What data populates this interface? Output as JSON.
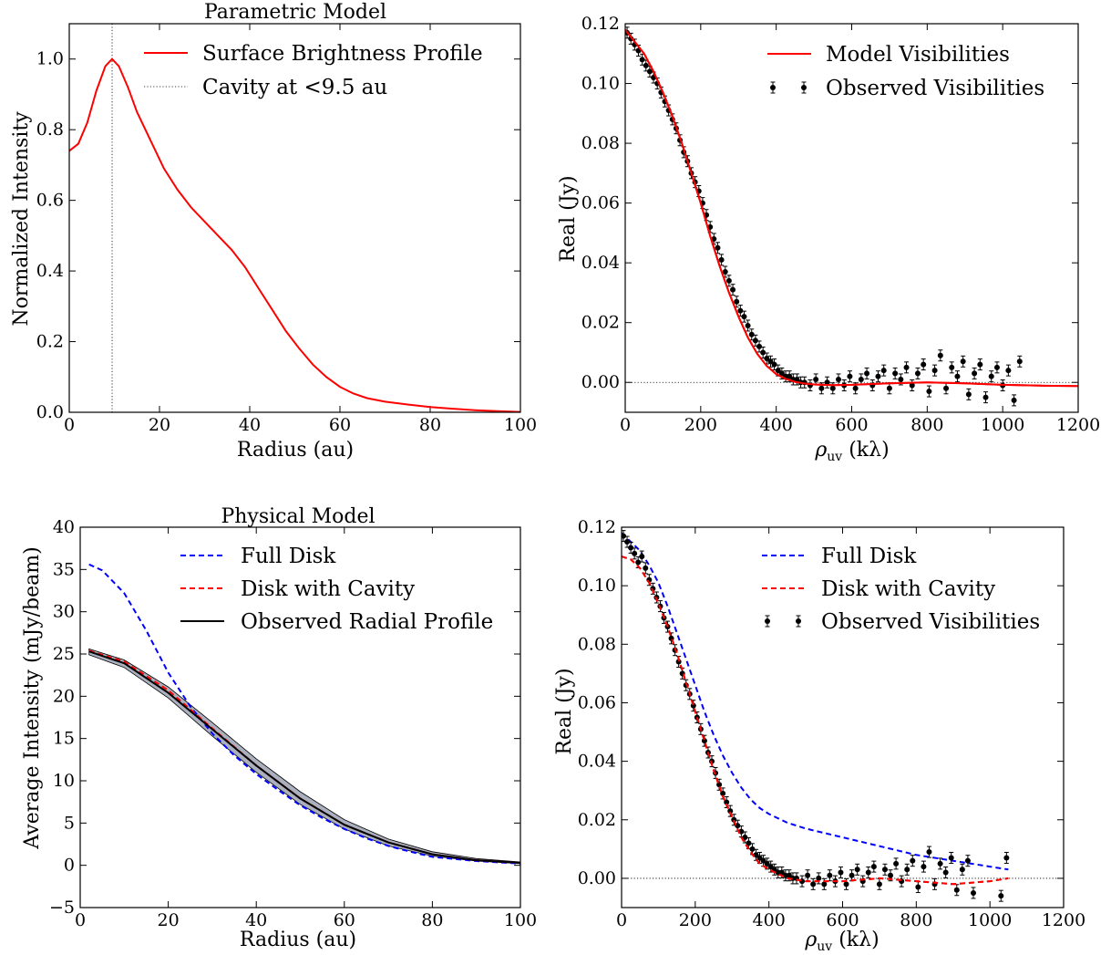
{
  "chart_data": [
    {
      "id": "p1",
      "type": "line",
      "title": "Parametric Model",
      "xlabel": "Radius (au)",
      "ylabel": "Normalized Intensity",
      "xlim": [
        0,
        100
      ],
      "ylim": [
        0,
        1.1
      ],
      "xticks": [
        "0",
        "20",
        "40",
        "60",
        "80",
        "100"
      ],
      "xtick_values": [
        0,
        20,
        40,
        60,
        80,
        100
      ],
      "yticks": [
        "0.0",
        "0.2",
        "0.4",
        "0.6",
        "0.8",
        "1.0"
      ],
      "ytick_values": [
        0,
        0.2,
        0.4,
        0.6,
        0.8,
        1.0
      ],
      "legend_position": "upper-right",
      "vline": {
        "x": 9.5,
        "label": "Cavity at <9.5 au"
      },
      "series": [
        {
          "name": "Surface Brightness Profile",
          "color": "#ff0000",
          "style": "solid",
          "x": [
            0,
            2,
            4,
            6,
            8,
            9.5,
            11,
            13,
            15,
            18,
            21,
            24,
            27,
            30,
            33,
            36,
            39,
            42,
            45,
            48,
            51,
            54,
            57,
            60,
            63,
            66,
            70,
            75,
            80,
            85,
            90,
            95,
            100
          ],
          "y": [
            0.74,
            0.76,
            0.82,
            0.91,
            0.98,
            1.0,
            0.98,
            0.92,
            0.85,
            0.77,
            0.69,
            0.63,
            0.58,
            0.54,
            0.5,
            0.46,
            0.41,
            0.35,
            0.29,
            0.23,
            0.18,
            0.135,
            0.1,
            0.072,
            0.053,
            0.04,
            0.03,
            0.022,
            0.015,
            0.01,
            0.006,
            0.003,
            0.001
          ]
        }
      ]
    },
    {
      "id": "p2",
      "type": "scatter",
      "xlabel": "ρ_uv (kλ)",
      "xlabel_parts": [
        "ρ",
        "uv",
        " (kλ)"
      ],
      "ylabel": "Real (Jy)",
      "xlim": [
        0,
        1200
      ],
      "ylim": [
        -0.01,
        0.12
      ],
      "xticks": [
        "0",
        "200",
        "400",
        "600",
        "800",
        "1000",
        "1200"
      ],
      "xtick_values": [
        0,
        200,
        400,
        600,
        800,
        1000,
        1200
      ],
      "yticks": [
        "0.00",
        "0.02",
        "0.04",
        "0.06",
        "0.08",
        "0.10",
        "0.12"
      ],
      "ytick_values": [
        0,
        0.02,
        0.04,
        0.06,
        0.08,
        0.1,
        0.12
      ],
      "legend_position": "upper-right",
      "zero_line": true,
      "series": [
        {
          "name": "Model Visibilities",
          "color": "#ff0000",
          "style": "solid",
          "x": [
            0,
            25,
            50,
            75,
            100,
            125,
            150,
            175,
            200,
            225,
            250,
            275,
            300,
            325,
            350,
            375,
            400,
            425,
            450,
            475,
            500,
            550,
            600,
            700,
            800,
            900,
            1000,
            1100,
            1200
          ],
          "y": [
            0.118,
            0.114,
            0.11,
            0.104,
            0.097,
            0.089,
            0.08,
            0.07,
            0.06,
            0.049,
            0.039,
            0.03,
            0.022,
            0.015,
            0.0095,
            0.0055,
            0.0028,
            0.0012,
            0.0002,
            -0.0004,
            -0.0007,
            -0.0009,
            -0.0008,
            -0.0003,
            0.0,
            -0.0003,
            -0.0008,
            -0.0011,
            -0.0012
          ]
        },
        {
          "name": "Observed Visibilities",
          "color": "#000000",
          "style": "markers",
          "x": [
            5,
            15,
            25,
            35,
            45,
            55,
            65,
            75,
            85,
            95,
            105,
            115,
            125,
            135,
            145,
            155,
            165,
            175,
            185,
            195,
            205,
            215,
            225,
            235,
            245,
            255,
            265,
            275,
            285,
            295,
            305,
            315,
            325,
            335,
            345,
            355,
            365,
            375,
            385,
            395,
            405,
            415,
            425,
            435,
            445,
            455,
            465,
            475,
            490,
            505,
            520,
            535,
            550,
            565,
            580,
            595,
            610,
            625,
            640,
            655,
            670,
            685,
            700,
            715,
            730,
            745,
            760,
            775,
            790,
            805,
            820,
            835,
            850,
            865,
            880,
            895,
            910,
            925,
            940,
            955,
            970,
            985,
            1000,
            1015,
            1030,
            1045
          ],
          "y": [
            0.117,
            0.115,
            0.113,
            0.111,
            0.108,
            0.106,
            0.104,
            0.102,
            0.1,
            0.097,
            0.094,
            0.091,
            0.088,
            0.085,
            0.081,
            0.077,
            0.074,
            0.07,
            0.067,
            0.064,
            0.06,
            0.056,
            0.052,
            0.048,
            0.045,
            0.041,
            0.037,
            0.034,
            0.031,
            0.027,
            0.024,
            0.022,
            0.019,
            0.016,
            0.014,
            0.012,
            0.01,
            0.008,
            0.007,
            0.006,
            0.004,
            0.003,
            0.002,
            0.002,
            0.001,
            0.001,
            0.0,
            0.0,
            -0.001,
            0.001,
            -0.002,
            0.0,
            -0.002,
            0.001,
            -0.001,
            0.002,
            -0.002,
            0.001,
            0.003,
            -0.001,
            0.002,
            0.004,
            -0.002,
            0.003,
            0.001,
            0.005,
            -0.001,
            0.003,
            0.006,
            -0.003,
            0.004,
            0.009,
            -0.002,
            0.005,
            0.002,
            0.007,
            -0.004,
            0.003,
            0.006,
            -0.005,
            0.002,
            0.005,
            -0.001,
            0.004,
            -0.006,
            0.007
          ]
        }
      ]
    },
    {
      "id": "p3",
      "type": "line",
      "title": "Physical Model",
      "xlabel": "Radius (au)",
      "ylabel": "Average Intensity (mJy/beam)",
      "xlim": [
        0,
        100
      ],
      "ylim": [
        -5,
        40
      ],
      "xticks": [
        "0",
        "20",
        "40",
        "60",
        "80",
        "100"
      ],
      "xtick_values": [
        0,
        20,
        40,
        60,
        80,
        100
      ],
      "yticks": [
        "−5",
        "0",
        "5",
        "10",
        "15",
        "20",
        "25",
        "30",
        "35",
        "40"
      ],
      "ytick_values": [
        -5,
        0,
        5,
        10,
        15,
        20,
        25,
        30,
        35,
        40
      ],
      "legend_position": "upper-right",
      "band": {
        "x": [
          2,
          10,
          20,
          30,
          40,
          50,
          60,
          70,
          80,
          90,
          100
        ],
        "y_low": [
          24.9,
          23.4,
          19.8,
          15.3,
          11.0,
          7.2,
          4.3,
          2.3,
          1.1,
          0.5,
          0.2
        ],
        "y_high": [
          25.6,
          24.3,
          21.1,
          16.9,
          12.6,
          8.7,
          5.4,
          3.1,
          1.6,
          0.8,
          0.4
        ]
      },
      "series": [
        {
          "name": "Full Disk",
          "color": "#0000ff",
          "style": "dashed",
          "x": [
            2,
            5,
            10,
            15,
            20,
            25,
            30,
            35,
            40,
            45,
            50,
            55,
            60,
            65,
            70,
            75,
            80,
            90,
            100
          ],
          "y": [
            35.6,
            34.9,
            32.2,
            27.8,
            22.8,
            18.8,
            15.6,
            13.0,
            10.8,
            8.9,
            7.1,
            5.6,
            4.3,
            3.2,
            2.3,
            1.6,
            1.0,
            0.5,
            0.2
          ]
        },
        {
          "name": "Disk with Cavity",
          "color": "#ff0000",
          "style": "dashed",
          "x": [
            2,
            10,
            20,
            30,
            40,
            50,
            60,
            70,
            80,
            90,
            100
          ],
          "y": [
            25.4,
            24.1,
            20.7,
            16.2,
            11.8,
            7.9,
            4.8,
            2.7,
            1.3,
            0.6,
            0.3
          ]
        },
        {
          "name": "Observed Radial Profile",
          "color": "#000000",
          "style": "solid",
          "x": [
            2,
            10,
            20,
            30,
            40,
            50,
            60,
            70,
            80,
            90,
            100
          ],
          "y": [
            25.3,
            23.9,
            20.4,
            16.1,
            11.8,
            7.9,
            4.8,
            2.7,
            1.3,
            0.6,
            0.3
          ]
        }
      ]
    },
    {
      "id": "p4",
      "type": "scatter",
      "xlabel": "ρ_uv (kλ)",
      "xlabel_parts": [
        "ρ",
        "uv",
        " (kλ)"
      ],
      "ylabel": "Real (Jy)",
      "xlim": [
        0,
        1200
      ],
      "ylim": [
        -0.01,
        0.12
      ],
      "xticks": [
        "0",
        "200",
        "400",
        "600",
        "800",
        "1000",
        "1200"
      ],
      "xtick_values": [
        0,
        200,
        400,
        600,
        800,
        1000,
        1200
      ],
      "yticks": [
        "0.00",
        "0.02",
        "0.04",
        "0.06",
        "0.08",
        "0.10",
        "0.12"
      ],
      "ytick_values": [
        0,
        0.02,
        0.04,
        0.06,
        0.08,
        0.1,
        0.12
      ],
      "legend_position": "upper-right",
      "zero_line": true,
      "series": [
        {
          "name": "Full Disk",
          "color": "#0000ff",
          "style": "dashed",
          "x": [
            0,
            25,
            50,
            75,
            100,
            125,
            150,
            175,
            200,
            225,
            250,
            275,
            300,
            325,
            350,
            375,
            400,
            450,
            500,
            600,
            700,
            800,
            900,
            1000,
            1050
          ],
          "y": [
            0.118,
            0.115,
            0.112,
            0.107,
            0.101,
            0.093,
            0.084,
            0.075,
            0.066,
            0.057,
            0.049,
            0.042,
            0.036,
            0.031,
            0.027,
            0.024,
            0.022,
            0.019,
            0.017,
            0.014,
            0.011,
            0.008,
            0.006,
            0.004,
            0.003
          ]
        },
        {
          "name": "Disk with Cavity",
          "color": "#ff0000",
          "style": "dashed",
          "x": [
            0,
            25,
            50,
            75,
            100,
            125,
            150,
            175,
            200,
            225,
            250,
            275,
            300,
            325,
            350,
            375,
            400,
            450,
            500,
            600,
            700,
            800,
            900,
            1000,
            1050
          ],
          "y": [
            0.11,
            0.109,
            0.106,
            0.101,
            0.094,
            0.086,
            0.077,
            0.067,
            0.057,
            0.047,
            0.037,
            0.028,
            0.021,
            0.014,
            0.009,
            0.005,
            0.003,
            0.0,
            -0.001,
            -0.001,
            0.0,
            -0.001,
            -0.002,
            -0.001,
            0.0
          ]
        },
        {
          "name": "Observed Visibilities",
          "color": "#000000",
          "style": "markers",
          "x": [
            5,
            15,
            25,
            35,
            45,
            55,
            65,
            75,
            85,
            95,
            105,
            115,
            125,
            135,
            145,
            155,
            165,
            175,
            185,
            195,
            205,
            215,
            225,
            235,
            245,
            255,
            265,
            275,
            285,
            295,
            305,
            315,
            325,
            335,
            345,
            355,
            365,
            375,
            385,
            395,
            405,
            415,
            425,
            435,
            445,
            455,
            465,
            475,
            490,
            505,
            520,
            535,
            550,
            565,
            580,
            595,
            610,
            625,
            640,
            655,
            670,
            685,
            700,
            715,
            730,
            745,
            760,
            775,
            790,
            805,
            820,
            835,
            850,
            865,
            880,
            895,
            910,
            925,
            940,
            955,
            1030,
            1045
          ],
          "y": [
            0.117,
            0.115,
            0.113,
            0.111,
            0.108,
            0.11,
            0.106,
            0.102,
            0.099,
            0.096,
            0.093,
            0.089,
            0.086,
            0.082,
            0.078,
            0.074,
            0.07,
            0.066,
            0.063,
            0.059,
            0.055,
            0.051,
            0.047,
            0.043,
            0.04,
            0.036,
            0.032,
            0.029,
            0.026,
            0.023,
            0.02,
            0.018,
            0.016,
            0.014,
            0.012,
            0.01,
            0.008,
            0.007,
            0.006,
            0.005,
            0.004,
            0.003,
            0.002,
            0.002,
            0.001,
            0.001,
            0.0,
            0.0,
            -0.001,
            0.001,
            -0.002,
            0.0,
            -0.002,
            0.001,
            -0.001,
            0.002,
            -0.002,
            0.001,
            0.003,
            -0.001,
            0.002,
            0.004,
            -0.002,
            0.003,
            0.001,
            0.005,
            -0.001,
            0.003,
            0.006,
            -0.003,
            0.004,
            0.009,
            -0.002,
            0.005,
            0.002,
            0.007,
            -0.004,
            0.003,
            0.006,
            -0.005,
            -0.006,
            0.007
          ]
        }
      ]
    }
  ]
}
